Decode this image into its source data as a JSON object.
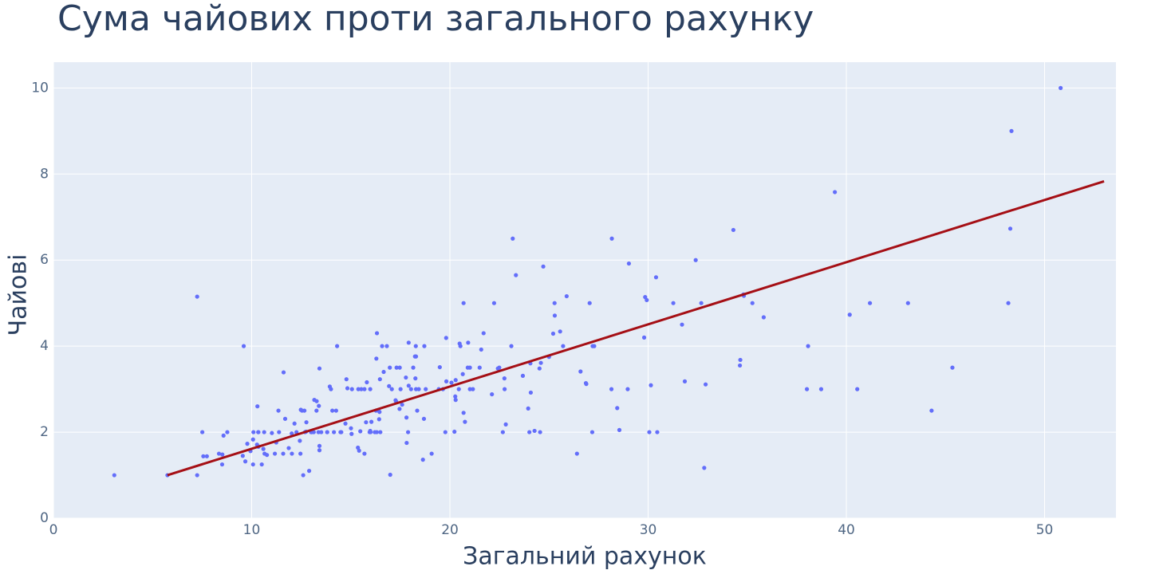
{
  "chart_data": {
    "type": "scatter",
    "title": "Сума чайових проти загального рахунку",
    "x_label": "Загальний рахунок",
    "y_label": "Чайові",
    "color": "#636efa",
    "xlim": [
      0,
      53.6
    ],
    "ylim": [
      0,
      10.6
    ],
    "xticks": [
      0,
      10,
      20,
      30,
      40,
      50
    ],
    "yticks": [
      0,
      2,
      4,
      6,
      8,
      10
    ],
    "grid": true,
    "x": [
      16.99,
      10.34,
      21.01,
      23.68,
      24.59,
      25.29,
      8.77,
      26.88,
      15.04,
      14.78,
      10.27,
      35.26,
      15.42,
      18.43,
      14.83,
      21.58,
      10.33,
      16.29,
      16.97,
      20.65,
      17.92,
      20.29,
      15.77,
      39.42,
      19.82,
      17.81,
      13.37,
      12.69,
      21.7,
      19.65,
      9.55,
      18.35,
      15.06,
      20.69,
      17.78,
      24.06,
      16.31,
      16.93,
      18.69,
      31.27,
      16.04,
      17.46,
      13.94,
      9.68,
      30.4,
      18.29,
      22.23,
      32.4,
      28.55,
      18.04,
      12.54,
      10.29,
      34.81,
      9.94,
      25.56,
      19.49,
      38.01,
      26.41,
      11.24,
      48.27,
      20.29,
      13.81,
      11.02,
      18.29,
      17.59,
      20.08,
      16.45,
      3.07,
      20.23,
      15.01,
      12.02,
      17.07,
      26.86,
      25.28,
      14.73,
      10.51,
      17.92,
      27.2,
      22.76,
      17.29,
      19.44,
      16.66,
      10.07,
      32.68,
      15.98,
      34.83,
      13.03,
      18.28,
      24.71,
      21.16,
      28.97,
      22.49,
      5.75,
      16.32,
      22.75,
      40.17,
      27.28,
      12.03,
      21.01,
      12.46,
      11.35,
      15.38,
      44.3,
      22.42,
      20.92,
      15.36,
      20.49,
      25.21,
      18.24,
      14.31,
      14.0,
      7.25,
      38.07,
      23.95,
      25.71,
      17.31,
      29.93,
      10.65,
      12.43,
      24.08,
      11.69,
      13.42,
      14.26,
      15.95,
      12.48,
      29.8,
      8.52,
      14.52,
      11.38,
      22.82,
      19.08,
      20.27,
      11.17,
      12.26,
      18.26,
      8.51,
      10.33,
      14.15,
      16.0,
      13.16,
      17.47,
      34.3,
      41.19,
      27.05,
      16.43,
      8.35,
      18.64,
      11.87,
      9.78,
      7.51,
      14.07,
      13.13,
      17.26,
      24.55,
      19.77,
      29.85,
      48.17,
      25.0,
      13.39,
      16.49,
      21.5,
      12.66,
      16.21,
      13.81,
      17.51,
      24.52,
      20.76,
      31.71,
      10.59,
      10.63,
      50.81,
      15.81,
      7.25,
      31.85,
      16.82,
      32.9,
      17.89,
      14.48,
      9.6,
      34.63,
      34.65,
      23.33,
      45.35,
      23.17,
      40.55,
      20.69,
      20.9,
      30.46,
      18.15,
      23.1,
      15.69,
      19.81,
      28.44,
      15.48,
      16.58,
      7.56,
      10.34,
      43.11,
      13.0,
      13.51,
      18.71,
      12.74,
      13.0,
      16.4,
      20.53,
      16.47,
      26.59,
      38.73,
      24.27,
      12.76,
      30.06,
      25.89,
      48.33,
      13.27,
      28.17,
      12.9,
      28.15,
      11.59,
      7.74,
      30.14,
      12.16,
      13.42,
      8.58,
      15.98,
      13.42,
      16.27,
      10.09,
      20.45,
      13.28,
      22.12,
      24.01,
      15.69,
      11.61,
      10.77,
      15.53,
      10.07,
      12.6,
      32.83,
      35.83,
      29.03,
      27.18,
      22.67,
      17.82,
      18.78
    ],
    "values": [
      1.01,
      1.66,
      3.5,
      3.31,
      3.61,
      4.71,
      2.0,
      3.12,
      1.96,
      3.23,
      1.71,
      5.0,
      1.57,
      3.0,
      3.02,
      3.92,
      1.67,
      3.71,
      3.5,
      3.35,
      4.08,
      2.75,
      2.23,
      7.58,
      3.18,
      2.34,
      2.0,
      2.0,
      4.3,
      3.0,
      1.45,
      2.5,
      3.0,
      2.45,
      3.27,
      3.6,
      2.0,
      3.07,
      2.31,
      5.0,
      2.24,
      2.54,
      3.06,
      1.32,
      5.6,
      3.0,
      5.0,
      6.0,
      2.05,
      3.0,
      2.5,
      2.6,
      5.2,
      1.56,
      4.34,
      3.51,
      3.0,
      1.5,
      1.76,
      6.73,
      3.21,
      2.0,
      1.98,
      3.76,
      2.64,
      3.15,
      2.47,
      1.0,
      2.01,
      2.09,
      1.97,
      3.0,
      3.14,
      5.0,
      2.2,
      1.25,
      3.08,
      4.0,
      3.0,
      2.71,
      3.0,
      3.4,
      1.83,
      5.0,
      2.03,
      5.17,
      2.0,
      4.0,
      5.85,
      3.0,
      3.0,
      3.5,
      1.0,
      4.3,
      3.25,
      4.73,
      4.0,
      1.5,
      3.0,
      1.5,
      2.5,
      3.0,
      2.5,
      3.48,
      4.08,
      1.64,
      4.06,
      4.29,
      3.76,
      4.0,
      3.0,
      1.0,
      4.0,
      2.55,
      4.0,
      3.5,
      5.07,
      1.5,
      1.8,
      2.92,
      2.31,
      1.68,
      2.5,
      2.0,
      2.52,
      4.2,
      1.48,
      2.0,
      2.0,
      2.18,
      1.5,
      2.83,
      1.5,
      2.0,
      3.25,
      1.25,
      2.0,
      2.0,
      2.0,
      2.75,
      3.5,
      6.7,
      5.0,
      5.0,
      2.3,
      1.5,
      1.36,
      1.63,
      1.73,
      2.0,
      2.5,
      2.0,
      2.74,
      2.0,
      2.0,
      5.14,
      5.0,
      3.75,
      2.61,
      2.0,
      3.5,
      2.5,
      2.0,
      2.0,
      3.0,
      3.48,
      2.24,
      4.5,
      1.61,
      2.0,
      10.0,
      3.16,
      5.15,
      3.18,
      4.0,
      3.11,
      2.0,
      2.0,
      4.0,
      3.55,
      3.68,
      5.65,
      3.5,
      6.5,
      3.0,
      5.0,
      3.5,
      2.0,
      3.5,
      4.0,
      1.5,
      4.19,
      2.56,
      2.02,
      4.0,
      1.44,
      2.0,
      5.0,
      2.0,
      2.0,
      4.0,
      2.01,
      2.0,
      2.5,
      4.0,
      3.23,
      3.41,
      3.0,
      2.03,
      2.23,
      2.0,
      5.16,
      9.0,
      2.5,
      6.5,
      1.1,
      3.0,
      1.5,
      1.44,
      3.09,
      2.2,
      3.48,
      1.92,
      3.0,
      1.58,
      2.5,
      2.0,
      3.0,
      2.72,
      2.88,
      2.0,
      3.0,
      3.39,
      1.47,
      3.0,
      1.25,
      1.0,
      1.17,
      4.67,
      5.92,
      2.0,
      2.0,
      1.75,
      3.0
    ],
    "trendline": {
      "x": [
        5.75,
        53.0
      ],
      "values": [
        1.0,
        7.83
      ],
      "color": "#a50f15"
    }
  }
}
